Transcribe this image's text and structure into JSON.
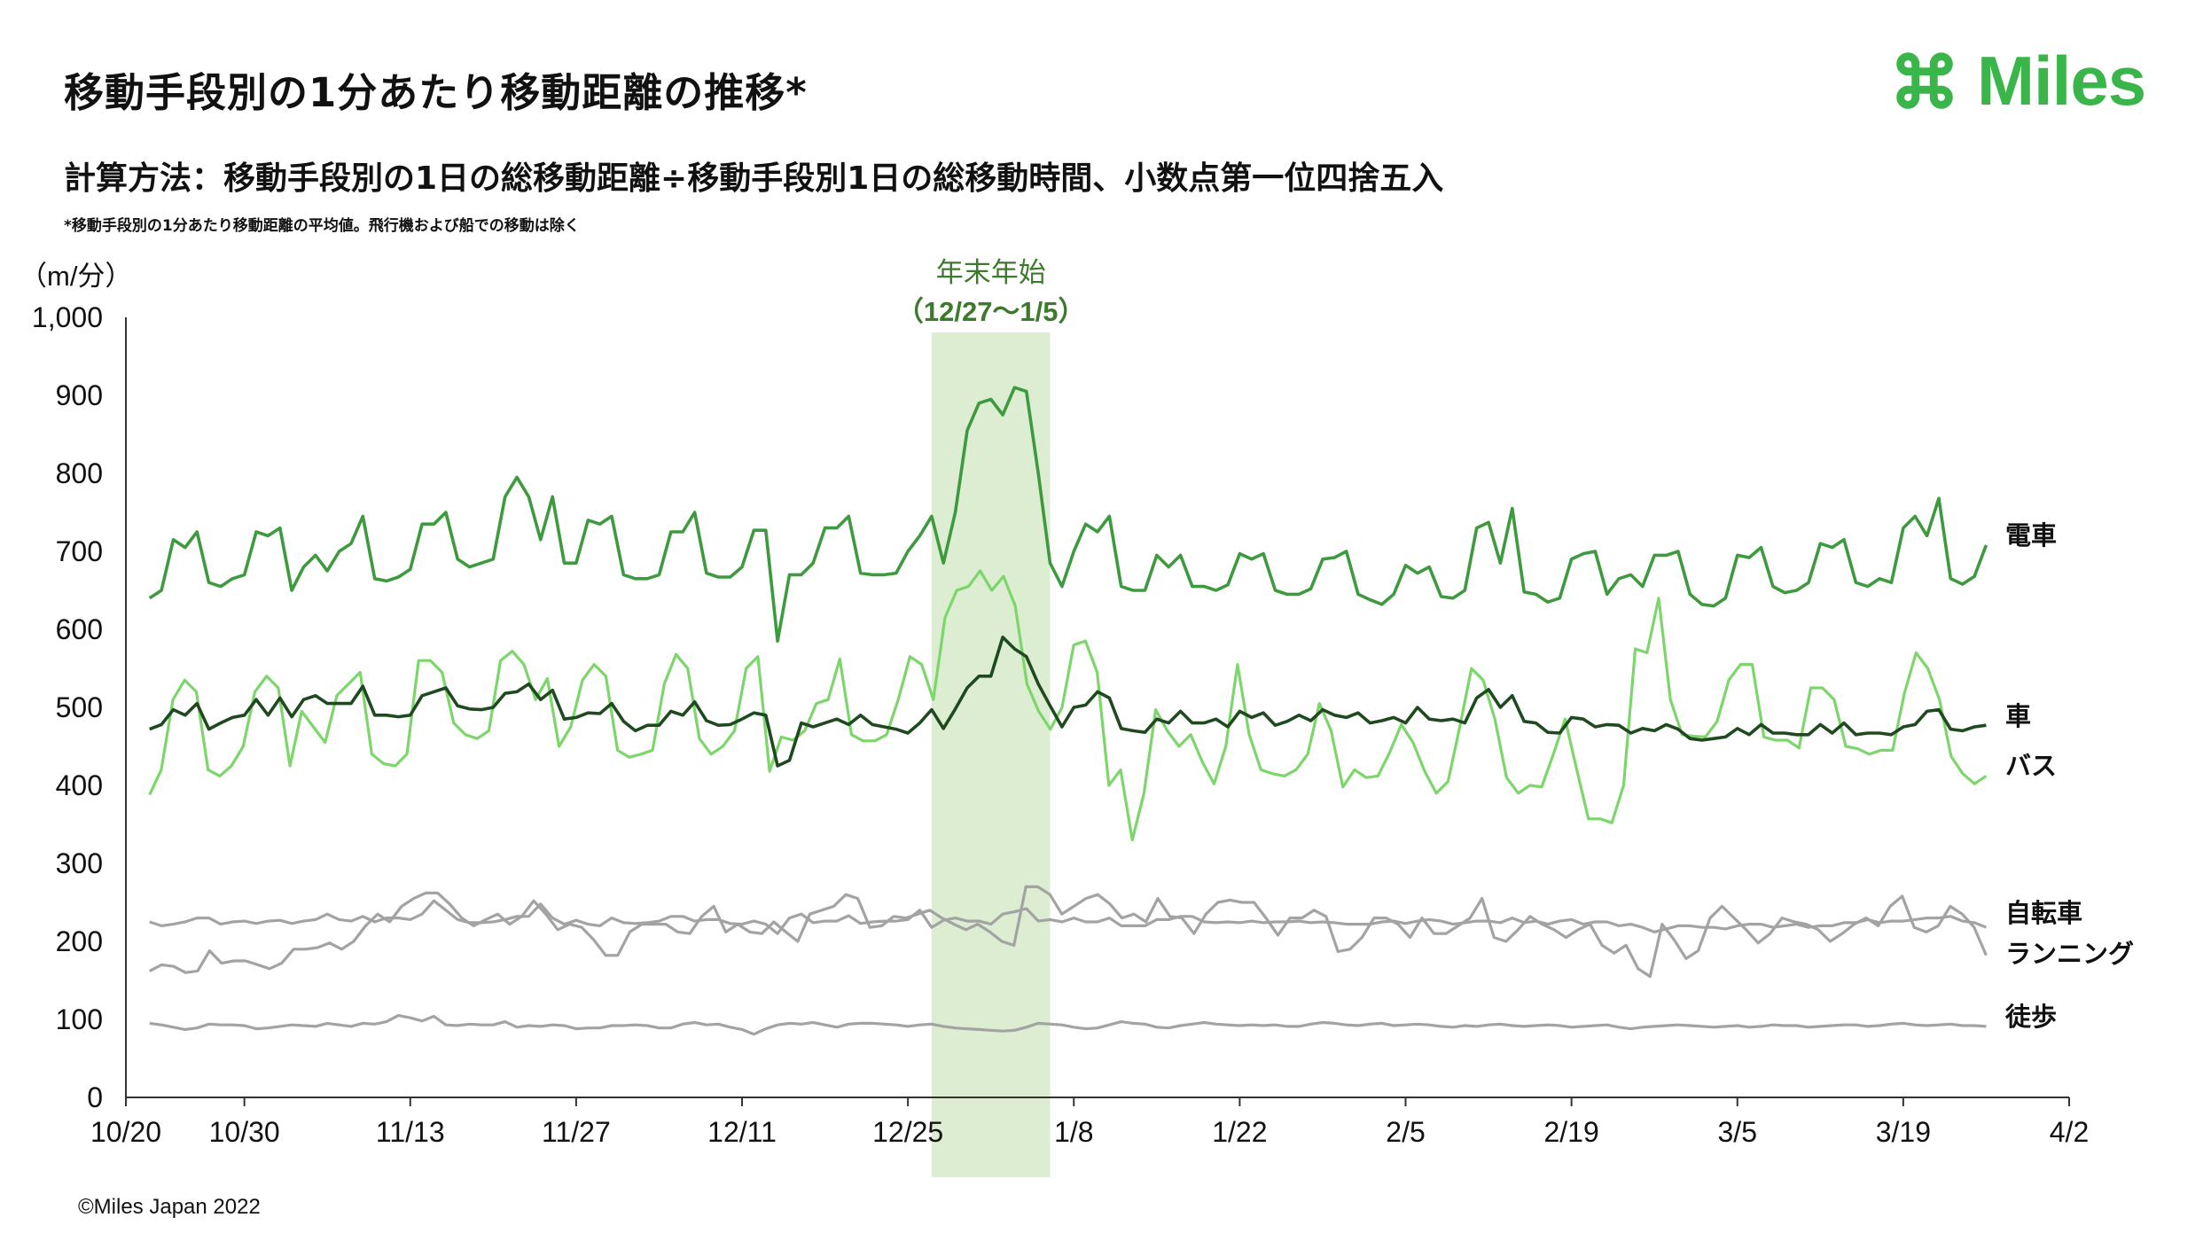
{
  "header": {
    "title": "移動手段別の1分あたり移動距離の推移*",
    "subtitle": "計算方法：移動手段別の1日の総移動距離÷移動手段別1日の総移動時間、小数点第一位四捨五入",
    "footnote": "*移動手段別の1分あたり移動距離の平均値。飛行機および船での移動は除く"
  },
  "logo": {
    "text": "Miles",
    "icon": "command-key-icon",
    "color": "#39b54a"
  },
  "footer": {
    "copyright": "©Miles Japan 2022"
  },
  "colors": {
    "train": "#3e9a3e",
    "car": "#1f4a20",
    "bus": "#7dd66b",
    "gray": "#a3a3a3",
    "highlight": "#dcedd2"
  },
  "chart_data": {
    "type": "line",
    "ylabel": "（m/分）",
    "ylim": [
      0,
      1000
    ],
    "yticks": [
      0,
      100,
      200,
      300,
      400,
      500,
      600,
      700,
      800,
      900,
      1000
    ],
    "ytick_labels": [
      "0",
      "100",
      "200",
      "300",
      "400",
      "500",
      "600",
      "700",
      "800",
      "900",
      "1,000"
    ],
    "xlim": [
      "2021-10-20",
      "2022-04-02"
    ],
    "xticks": [
      "2021-10-20",
      "2021-10-30",
      "2021-11-13",
      "2021-11-27",
      "2021-12-11",
      "2021-12-25",
      "2022-01-08",
      "2022-01-22",
      "2022-02-05",
      "2022-02-19",
      "2022-03-05",
      "2022-03-19",
      "2022-04-02"
    ],
    "xtick_labels": [
      "10/20",
      "10/30",
      "11/13",
      "11/27",
      "12/11",
      "12/25",
      "1/8",
      "1/22",
      "2/5",
      "2/19",
      "3/5",
      "3/19",
      "4/2"
    ],
    "highlight": {
      "label1": "年末年始",
      "label2": "（12/27〜1/5）",
      "start": "2021-12-27",
      "end": "2022-01-06"
    },
    "x_start": "2021-10-22",
    "x_end": "2022-03-26",
    "series": [
      {
        "name": "電車",
        "key": "train",
        "values": [
          640,
          650,
          715,
          705,
          725,
          660,
          655,
          665,
          670,
          725,
          720,
          730,
          650,
          680,
          695,
          675,
          700,
          710,
          745,
          665,
          662,
          667,
          677,
          735,
          735,
          750,
          690,
          680,
          685,
          690,
          770,
          795,
          770,
          715,
          770,
          685,
          685,
          740,
          735,
          745,
          670,
          665,
          665,
          670,
          725,
          725,
          750,
          672,
          667,
          667,
          680,
          727,
          727,
          585,
          670,
          670,
          685,
          730,
          730,
          745,
          672,
          670,
          670,
          672,
          700,
          720,
          745,
          685,
          750,
          855,
          890,
          895,
          875,
          910,
          905,
          800,
          685,
          655,
          700,
          735,
          725,
          745,
          655,
          650,
          650,
          695,
          680,
          695,
          655,
          655,
          650,
          657,
          697,
          690,
          697,
          650,
          645,
          645,
          652,
          690,
          692,
          700,
          645,
          638,
          632,
          645,
          682,
          672,
          680,
          642,
          640,
          650,
          730,
          737,
          685,
          755,
          648,
          645,
          635,
          640,
          690,
          697,
          700,
          645,
          665,
          670,
          655,
          695,
          695,
          700,
          645,
          632,
          630,
          640,
          695,
          692,
          705,
          655,
          647,
          650,
          660,
          710,
          705,
          715,
          660,
          655,
          665,
          660,
          730,
          745,
          720,
          768,
          665,
          658,
          668,
          708
        ]
      },
      {
        "name": "車",
        "key": "car",
        "values": [
          472,
          478,
          497,
          490,
          505,
          472,
          480,
          487,
          490,
          510,
          490,
          512,
          488,
          510,
          515,
          505,
          505,
          505,
          527,
          490,
          490,
          488,
          490,
          515,
          520,
          525,
          502,
          498,
          497,
          500,
          518,
          520,
          530,
          510,
          522,
          485,
          487,
          493,
          492,
          505,
          482,
          470,
          477,
          477,
          495,
          490,
          507,
          483,
          477,
          478,
          485,
          493,
          490,
          425,
          432,
          480,
          475,
          480,
          485,
          478,
          490,
          478,
          475,
          472,
          467,
          480,
          497,
          473,
          498,
          525,
          540,
          540,
          590,
          575,
          565,
          530,
          502,
          475,
          500,
          503,
          520,
          512,
          473,
          470,
          468,
          485,
          480,
          495,
          480,
          480,
          485,
          475,
          495,
          487,
          493,
          477,
          482,
          490,
          483,
          497,
          490,
          487,
          493,
          480,
          483,
          487,
          480,
          500,
          485,
          483,
          485,
          480,
          512,
          523,
          500,
          515,
          482,
          480,
          468,
          467,
          487,
          485,
          475,
          478,
          477,
          467,
          473,
          470,
          478,
          472,
          460,
          458,
          460,
          462,
          473,
          465,
          478,
          467,
          467,
          465,
          465,
          478,
          467,
          480,
          465,
          467,
          467,
          465,
          475,
          478,
          495,
          497,
          472,
          470,
          475,
          477
        ]
      },
      {
        "name": "バス",
        "key": "bus",
        "values": [
          388,
          420,
          510,
          535,
          520,
          420,
          412,
          425,
          450,
          520,
          540,
          525,
          425,
          495,
          475,
          455,
          515,
          530,
          545,
          440,
          428,
          425,
          440,
          560,
          560,
          545,
          480,
          465,
          460,
          470,
          560,
          572,
          555,
          510,
          537,
          450,
          475,
          535,
          555,
          540,
          445,
          436,
          440,
          445,
          530,
          568,
          550,
          460,
          440,
          450,
          470,
          550,
          565,
          418,
          462,
          458,
          470,
          505,
          510,
          562,
          465,
          457,
          457,
          465,
          510,
          565,
          555,
          510,
          615,
          650,
          655,
          675,
          650,
          668,
          630,
          530,
          495,
          472,
          500,
          580,
          585,
          545,
          400,
          420,
          330,
          390,
          497,
          470,
          450,
          465,
          430,
          402,
          450,
          555,
          465,
          420,
          415,
          412,
          420,
          440,
          505,
          470,
          398,
          420,
          410,
          412,
          442,
          478,
          455,
          418,
          390,
          405,
          475,
          550,
          535,
          485,
          410,
          390,
          400,
          398,
          440,
          485,
          420,
          357,
          357,
          352,
          400,
          575,
          570,
          640,
          510,
          465,
          463,
          462,
          482,
          535,
          555,
          555,
          462,
          458,
          458,
          448,
          525,
          525,
          510,
          450,
          447,
          440,
          445,
          445,
          518,
          570,
          550,
          510,
          437,
          415,
          402,
          412
        ]
      },
      {
        "name": "自転車",
        "key": "bike",
        "values": [
          225,
          220,
          222,
          225,
          230,
          230,
          222,
          225,
          226,
          223,
          226,
          227,
          223,
          226,
          228,
          235,
          228,
          226,
          232,
          225,
          230,
          230,
          228,
          235,
          252,
          240,
          228,
          224,
          224,
          225,
          228,
          232,
          232,
          248,
          230,
          222,
          227,
          222,
          220,
          230,
          224,
          223,
          224,
          226,
          232,
          232,
          226,
          228,
          228,
          223,
          222,
          226,
          222,
          210,
          230,
          235,
          224,
          226,
          226,
          233,
          223,
          225,
          226,
          226,
          228,
          240,
          218,
          227,
          230,
          226,
          226,
          222,
          235,
          238,
          242,
          226,
          228,
          225,
          230,
          225,
          225,
          230,
          220,
          220,
          220,
          228,
          228,
          232,
          232,
          225,
          224,
          225,
          224,
          226,
          224,
          225,
          225,
          226,
          224,
          225,
          224,
          222,
          222,
          222,
          225,
          226,
          223,
          226,
          228,
          226,
          222,
          224,
          226,
          226,
          224,
          230,
          224,
          226,
          222,
          226,
          228,
          222,
          225,
          225,
          220,
          222,
          218,
          212,
          216,
          220,
          220,
          218,
          218,
          216,
          220,
          222,
          222,
          218,
          220,
          222,
          218,
          220,
          220,
          224,
          224,
          228,
          224,
          226,
          226,
          228,
          230,
          230,
          232,
          226,
          224,
          218
        ]
      },
      {
        "name": "ランニング",
        "key": "run",
        "values": [
          162,
          170,
          168,
          160,
          162,
          188,
          172,
          175,
          175,
          170,
          165,
          172,
          190,
          190,
          192,
          198,
          190,
          200,
          220,
          235,
          225,
          245,
          255,
          262,
          262,
          248,
          230,
          220,
          228,
          235,
          222,
          232,
          252,
          235,
          215,
          222,
          218,
          202,
          182,
          182,
          212,
          222,
          222,
          222,
          212,
          210,
          232,
          245,
          212,
          222,
          212,
          210,
          225,
          212,
          200,
          235,
          240,
          245,
          260,
          255,
          218,
          220,
          232,
          230,
          235,
          240,
          230,
          222,
          215,
          222,
          212,
          200,
          195,
          270,
          270,
          260,
          235,
          245,
          255,
          260,
          248,
          230,
          235,
          225,
          255,
          232,
          230,
          210,
          235,
          250,
          253,
          250,
          250,
          230,
          208,
          230,
          230,
          240,
          232,
          187,
          190,
          205,
          230,
          230,
          222,
          205,
          230,
          210,
          210,
          220,
          230,
          255,
          205,
          200,
          215,
          232,
          222,
          215,
          205,
          215,
          222,
          195,
          185,
          195,
          165,
          155,
          222,
          202,
          178,
          188,
          230,
          245,
          230,
          215,
          198,
          210,
          230,
          225,
          222,
          215,
          200,
          210,
          222,
          230,
          220,
          245,
          258,
          218,
          212,
          220,
          245,
          235,
          218,
          182
        ]
      },
      {
        "name": "徒歩",
        "key": "walk",
        "values": [
          95,
          93,
          90,
          87,
          89,
          94,
          93,
          93,
          92,
          88,
          89,
          91,
          93,
          92,
          91,
          95,
          93,
          91,
          95,
          94,
          97,
          105,
          102,
          98,
          104,
          93,
          92,
          94,
          93,
          93,
          97,
          90,
          92,
          91,
          93,
          92,
          88,
          89,
          89,
          92,
          92,
          93,
          92,
          89,
          89,
          94,
          96,
          93,
          94,
          90,
          87,
          81,
          88,
          93,
          95,
          94,
          96,
          93,
          90,
          94,
          95,
          95,
          94,
          93,
          91,
          93,
          94,
          91,
          89,
          88,
          87,
          86,
          85,
          86,
          90,
          95,
          94,
          93,
          90,
          88,
          89,
          93,
          97,
          95,
          94,
          90,
          89,
          92,
          94,
          96,
          94,
          93,
          92,
          93,
          92,
          93,
          91,
          91,
          94,
          96,
          95,
          93,
          92,
          94,
          95,
          92,
          93,
          94,
          93,
          91,
          90,
          92,
          91,
          93,
          94,
          92,
          91,
          92,
          93,
          92,
          90,
          91,
          92,
          93,
          90,
          88,
          90,
          91,
          92,
          93,
          92,
          91,
          90,
          91,
          92,
          90,
          91,
          93,
          92,
          92,
          90,
          91,
          92,
          93,
          93,
          91,
          92,
          94,
          95,
          93,
          92,
          93,
          94,
          92,
          92,
          91
        ]
      }
    ]
  }
}
